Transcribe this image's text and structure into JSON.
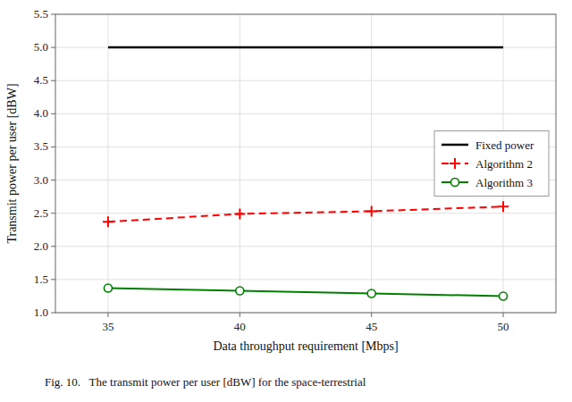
{
  "chart_data": {
    "type": "line",
    "x": [
      35,
      40,
      45,
      50
    ],
    "series": [
      {
        "name": "Fixed power",
        "color": "#000000",
        "values": [
          5.0,
          5.0,
          5.0,
          5.0
        ],
        "line_style": "solid",
        "marker": "none"
      },
      {
        "name": "Algorithm 2",
        "color": "#ff0000",
        "values": [
          2.37,
          2.49,
          2.53,
          2.6
        ],
        "line_style": "dashed",
        "marker": "plus"
      },
      {
        "name": "Algorithm 3",
        "color": "#008000",
        "values": [
          1.37,
          1.33,
          1.29,
          1.25
        ],
        "line_style": "solid",
        "marker": "circle"
      }
    ],
    "x_label": "Data throughput requirement [Mbps]",
    "y_label": "Transmit power per user [dBW]",
    "xlim": [
      33,
      52
    ],
    "ylim": [
      1.0,
      5.5
    ],
    "xticks": [
      35,
      40,
      45,
      50
    ],
    "yticks": [
      {
        "value": 1.0,
        "label": "1.0"
      },
      1.5,
      {
        "value": 2.0,
        "label": "2.0"
      },
      2.5,
      {
        "value": 3.0,
        "label": "3.0"
      },
      3.5,
      {
        "value": 4.0,
        "label": "4.0"
      },
      4.5,
      {
        "value": 5.0,
        "label": "5.0"
      },
      5.5
    ],
    "grid": true,
    "legend": "center right",
    "annotations": [
      "Fig. 10.   The transmit power per user [dBW] for the space-terrestrial"
    ]
  }
}
